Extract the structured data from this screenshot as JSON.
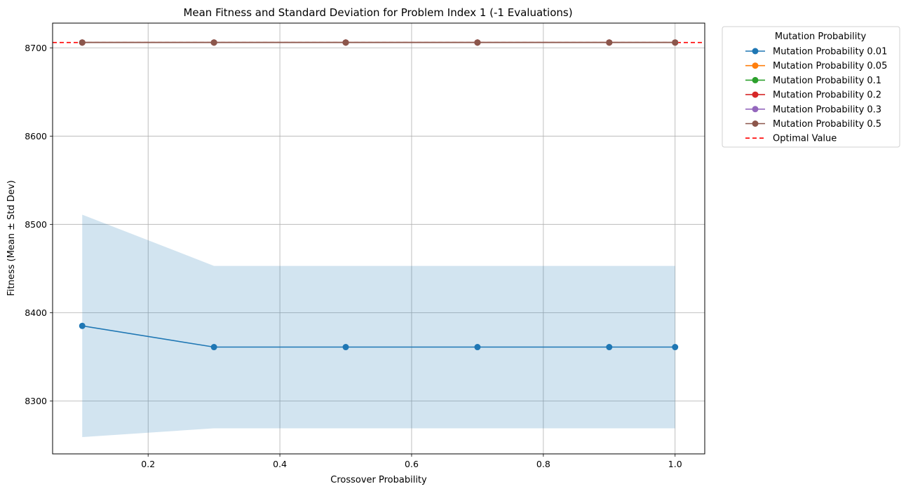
{
  "chart_data": {
    "type": "line",
    "title": "Mean Fitness and Standard Deviation for Problem Index 1 (-1 Evaluations)",
    "xlabel": "Crossover Probability",
    "ylabel": "Fitness (Mean ± Std Dev)",
    "xlim": [
      0.055,
      1.045
    ],
    "ylim": [
      8240,
      8728
    ],
    "x": [
      0.1,
      0.3,
      0.5,
      0.7,
      0.9,
      1.0
    ],
    "x_ticks": [
      0.2,
      0.4,
      0.6,
      0.8,
      1.0
    ],
    "x_tick_labels": [
      "0.2",
      "0.4",
      "0.6",
      "0.8",
      "1.0"
    ],
    "y_ticks": [
      8300,
      8400,
      8500,
      8600,
      8700
    ],
    "y_tick_labels": [
      "8300",
      "8400",
      "8500",
      "8600",
      "8700"
    ],
    "grid": true,
    "legend_title": "Mutation Probability",
    "legend_position": "outside-upper-right",
    "series": [
      {
        "name": "Mutation Probability 0.01",
        "color": "#1f77b4",
        "values": [
          8385,
          8361,
          8361,
          8361,
          8361,
          8361
        ],
        "std_band_low": [
          8259,
          8269,
          8269,
          8269,
          8269,
          8269
        ],
        "std_band_high": [
          8511,
          8453,
          8453,
          8453,
          8453,
          8453
        ]
      },
      {
        "name": "Mutation Probability 0.05",
        "color": "#ff7f0e",
        "values": [
          8706,
          8706,
          8706,
          8706,
          8706,
          8706
        ]
      },
      {
        "name": "Mutation Probability 0.1",
        "color": "#2ca02c",
        "values": [
          8706,
          8706,
          8706,
          8706,
          8706,
          8706
        ]
      },
      {
        "name": "Mutation Probability 0.2",
        "color": "#d62728",
        "values": [
          8706,
          8706,
          8706,
          8706,
          8706,
          8706
        ]
      },
      {
        "name": "Mutation Probability 0.3",
        "color": "#9467bd",
        "values": [
          8706,
          8706,
          8706,
          8706,
          8706,
          8706
        ]
      },
      {
        "name": "Mutation Probability 0.5",
        "color": "#8c564b",
        "values": [
          8706,
          8706,
          8706,
          8706,
          8706,
          8706
        ]
      }
    ],
    "reference_line": {
      "name": "Optimal Value",
      "value": 8706,
      "color": "#ff0000",
      "style": "dashed"
    }
  }
}
